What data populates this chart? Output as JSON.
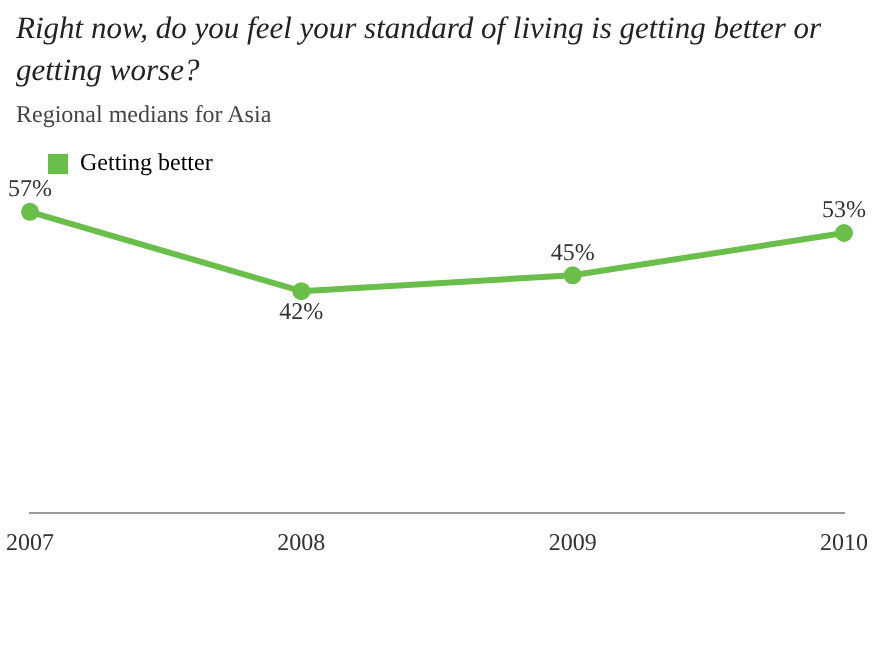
{
  "chart_data": {
    "type": "line",
    "title": "Right now, do you feel your standard of living is getting better or getting worse?",
    "subtitle": "Regional medians for Asia",
    "categories": [
      "2007",
      "2008",
      "2009",
      "2010"
    ],
    "series": [
      {
        "name": "Getting better",
        "color": "#6abf4b",
        "values": [
          57,
          42,
          45,
          53
        ],
        "value_labels": [
          "57%",
          "42%",
          "45%",
          "53%"
        ]
      }
    ],
    "tick_labels": "x",
    "legend": "top left",
    "marker": "circle",
    "grid": false
  }
}
